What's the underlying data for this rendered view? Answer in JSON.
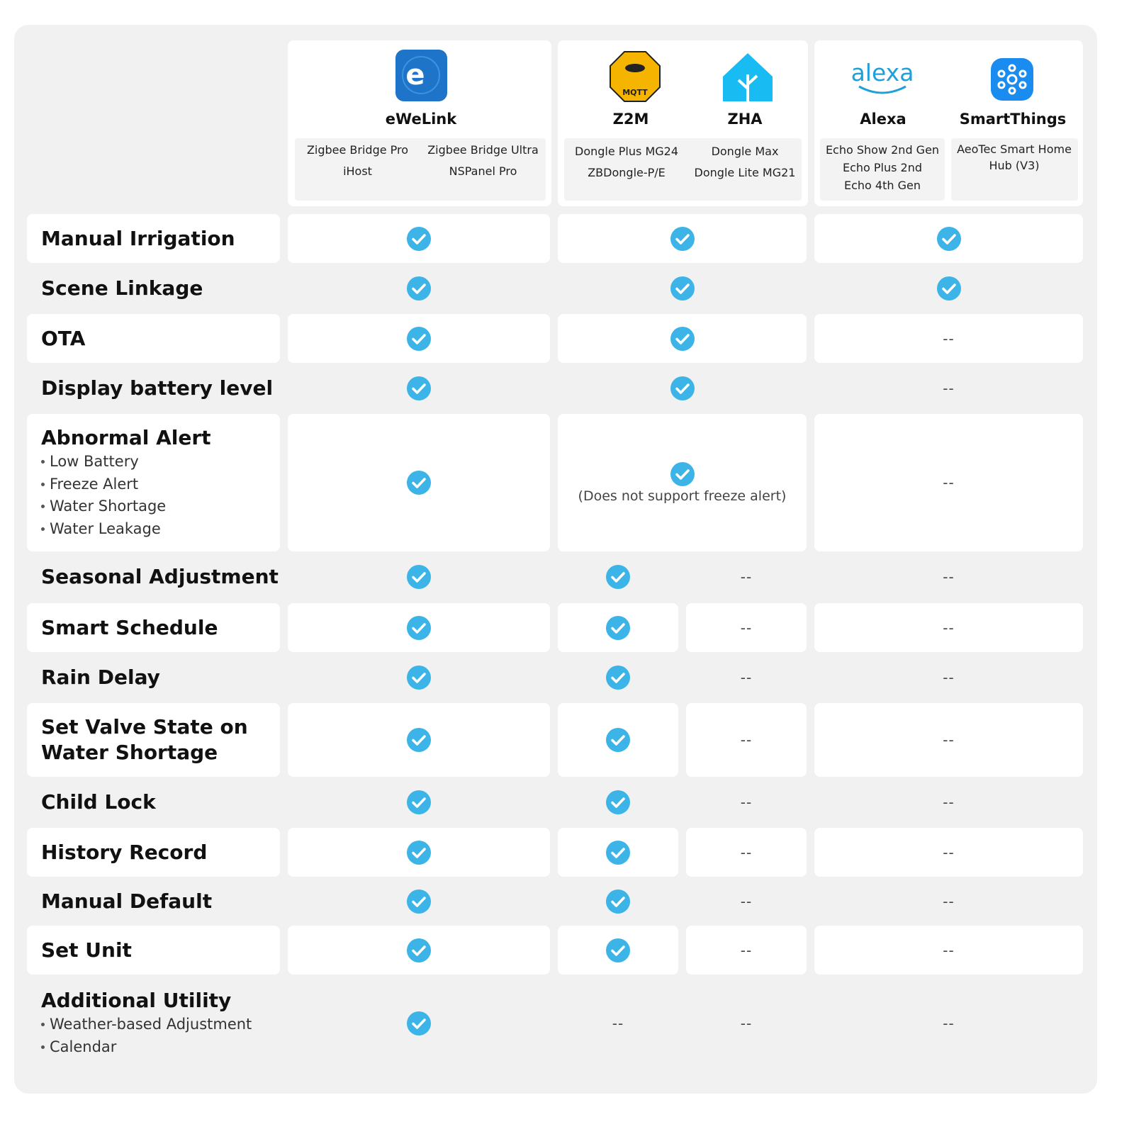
{
  "platforms": [
    {
      "name": "eWeLink",
      "logo": "e",
      "devices": [
        "Zigbee Bridge Pro",
        "Zigbee Bridge Ultra",
        "iHost",
        "NSPanel Pro"
      ]
    },
    {
      "name": "Z2M",
      "logo": "MQTT",
      "devices": [
        "Dongle Plus MG24",
        "ZBDongle-P/E"
      ]
    },
    {
      "name": "ZHA",
      "devices": [
        "Dongle  Max",
        "Dongle Lite MG21"
      ]
    },
    {
      "name": "Alexa",
      "logo": "alexa",
      "devices": [
        "Echo Show 2nd Gen",
        "Echo Plus 2nd",
        "Echo 4th Gen"
      ]
    },
    {
      "name": "SmartThings",
      "devices": [
        "AeoTec Smart Home Hub (V3)"
      ]
    }
  ],
  "rows": [
    {
      "feature": "Manual Irrigation",
      "cells": []
    },
    {
      "feature": "Scene Linkage",
      "cells": []
    },
    {
      "feature": "OTA",
      "cells": [
        "--"
      ]
    },
    {
      "feature": "Display battery level",
      "cells": [
        "--"
      ]
    },
    {
      "feature": "Abnormal Alert",
      "bullets": [
        "Low Battery",
        "Freeze Alert",
        "Water Shortage",
        "Water Leakage"
      ],
      "cells": [
        "(Does not support freeze alert)",
        "--"
      ]
    },
    {
      "feature": "Seasonal Adjustment",
      "cells": [
        "--",
        "--"
      ]
    },
    {
      "feature": "Smart Schedule",
      "cells": [
        "--",
        "--"
      ]
    },
    {
      "feature": "Rain Delay",
      "cells": [
        "--",
        "--"
      ]
    },
    {
      "feature": "Set Valve State on Water Shortage",
      "cells": [
        "--",
        "--"
      ]
    },
    {
      "feature": "Child Lock",
      "cells": [
        "--",
        "--"
      ]
    },
    {
      "feature": "History Record",
      "cells": [
        "--",
        "--"
      ]
    },
    {
      "feature": "Manual Default",
      "cells": [
        "--",
        "--"
      ]
    },
    {
      "feature": "Set Unit",
      "cells": [
        "--",
        "--"
      ]
    },
    {
      "feature": "Additional Utility",
      "bullets": [
        "Weather-based Adjustment",
        "Calendar"
      ],
      "cells": [
        "--",
        "--",
        "--"
      ]
    }
  ]
}
